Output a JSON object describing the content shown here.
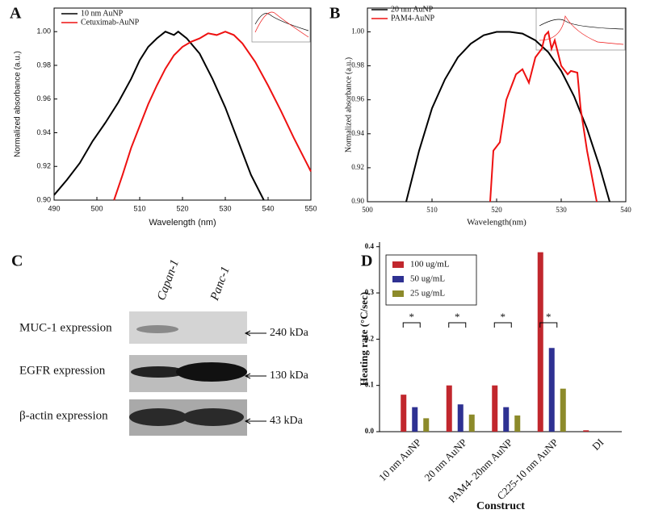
{
  "chart_data": [
    {
      "type": "line",
      "panel": "A",
      "xlabel": "Wavelength (nm)",
      "ylabel": "Normalized absorbance (a.u.)",
      "xlim": [
        490,
        550
      ],
      "xticks": [
        490,
        500,
        510,
        520,
        530,
        540,
        550
      ],
      "ylim": [
        0.9,
        1.014
      ],
      "yticks": [
        {
          "value": 0.9,
          "label": "0.90"
        },
        {
          "value": 0.92,
          "label": "0.92"
        },
        {
          "value": 0.94,
          "label": "0.94"
        },
        {
          "value": 0.96,
          "label": "0.96"
        },
        {
          "value": 0.98,
          "label": "0.98"
        },
        {
          "value": 1.0,
          "label": "1.00"
        }
      ],
      "legend": "top-left",
      "series": [
        {
          "name": "10 nm AuNP",
          "color": "#000000",
          "x": [
            490,
            493,
            496,
            499,
            502,
            505,
            508,
            510,
            512,
            514,
            516,
            518,
            519,
            521,
            524,
            527,
            530,
            533,
            536,
            539
          ],
          "values": [
            0.903,
            0.912,
            0.922,
            0.935,
            0.946,
            0.958,
            0.972,
            0.983,
            0.991,
            0.996,
            1.0,
            0.998,
            1.0,
            0.996,
            0.987,
            0.972,
            0.955,
            0.935,
            0.915,
            0.9
          ]
        },
        {
          "name": "Cetuximab-AuNP",
          "color": "#ee1111",
          "x": [
            504,
            506,
            508,
            510,
            512,
            514,
            516,
            518,
            520,
            522,
            524,
            526,
            528,
            530,
            532,
            534,
            537,
            540,
            543,
            546,
            550
          ],
          "values": [
            0.9,
            0.915,
            0.931,
            0.944,
            0.957,
            0.968,
            0.978,
            0.986,
            0.991,
            0.994,
            0.996,
            0.999,
            0.998,
            1.0,
            0.998,
            0.993,
            0.982,
            0.968,
            0.953,
            0.937,
            0.917
          ]
        }
      ]
    },
    {
      "type": "line",
      "panel": "B",
      "xlabel": "Wavelength(nm)",
      "ylabel": "Normalized absorbance (a.u.)",
      "xlim": [
        500,
        540
      ],
      "xticks": [
        500,
        510,
        520,
        530,
        540
      ],
      "ylim": [
        0.9,
        1.014
      ],
      "yticks": [
        {
          "value": 0.9,
          "label": "0.90"
        },
        {
          "value": 0.92,
          "label": "0.92"
        },
        {
          "value": 0.94,
          "label": "0.94"
        },
        {
          "value": 0.96,
          "label": "0.96"
        },
        {
          "value": 0.98,
          "label": "0.98"
        },
        {
          "value": 1.0,
          "label": "1.00"
        }
      ],
      "legend": "top-left",
      "series": [
        {
          "name": "20 nm AuNP",
          "color": "#000000",
          "x": [
            506,
            508,
            510,
            512,
            514,
            516,
            518,
            520,
            522,
            524,
            526,
            528,
            530,
            532,
            534,
            536,
            537.5
          ],
          "values": [
            0.9,
            0.93,
            0.955,
            0.972,
            0.985,
            0.993,
            0.998,
            1.0,
            1.0,
            0.999,
            0.995,
            0.988,
            0.977,
            0.962,
            0.943,
            0.92,
            0.9
          ]
        },
        {
          "name": "PAM4-AuNP",
          "color": "#ee1111",
          "x": [
            519,
            519.5,
            520.5,
            521.5,
            523,
            524,
            525,
            526,
            527,
            527.5,
            528,
            528.5,
            529,
            530,
            531,
            531.5,
            532.5,
            533,
            534,
            535,
            535.5
          ],
          "values": [
            0.9,
            0.93,
            0.935,
            0.96,
            0.975,
            0.978,
            0.97,
            0.985,
            0.99,
            0.998,
            1.0,
            0.99,
            0.995,
            0.98,
            0.975,
            0.977,
            0.976,
            0.955,
            0.93,
            0.91,
            0.9
          ]
        }
      ]
    },
    {
      "type": "bar",
      "panel": "D",
      "xlabel": "Construct",
      "ylabel": "Heating rate (°C/sec)",
      "ylim": [
        0,
        0.41
      ],
      "yticks": [
        {
          "value": 0,
          "label": "0.0"
        },
        {
          "value": 0.1,
          "label": "0.1"
        },
        {
          "value": 0.2,
          "label": "0.2"
        },
        {
          "value": 0.3,
          "label": "0.3"
        },
        {
          "value": 0.4,
          "label": "0.4"
        }
      ],
      "legend": "top-left",
      "categories": [
        "10 nm AuNP",
        "20 nm AuNP",
        "PAM4- 20nm AuNP",
        "C225-10 nm AuNP",
        "DI"
      ],
      "series": [
        {
          "name": "100 ug/mL",
          "color": "#c1272d",
          "values": [
            0.08,
            0.1,
            0.1,
            0.388,
            0.003
          ]
        },
        {
          "name": "50 ug/mL",
          "color": "#2e3192",
          "values": [
            0.053,
            0.059,
            0.053,
            0.181,
            0
          ]
        },
        {
          "name": "25 ug/mL",
          "color": "#8c8a2a",
          "values": [
            0.029,
            0.037,
            0.035,
            0.093,
            0
          ]
        }
      ],
      "annotations": [
        "*",
        "*",
        "*",
        "*"
      ]
    }
  ],
  "blot": {
    "panel": "C",
    "lanes": [
      "Capan-1",
      "Panc-1"
    ],
    "rows": [
      {
        "label": "MUC-1 expression",
        "marker": "240 kDa"
      },
      {
        "label": "EGFR expression",
        "marker": "130 kDa"
      },
      {
        "label": "β-actin expression",
        "marker": "43 kDa"
      }
    ]
  }
}
